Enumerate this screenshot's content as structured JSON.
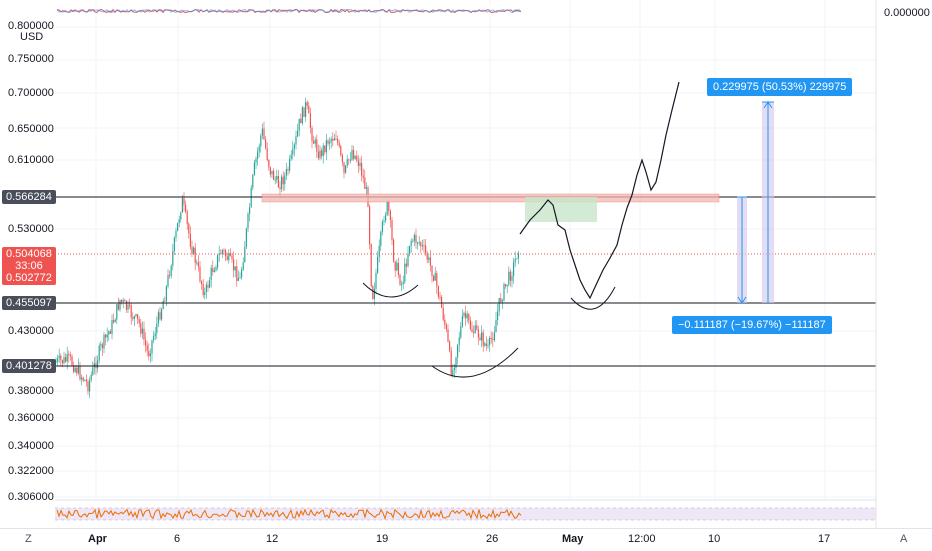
{
  "y_axis": {
    "currency": "USD",
    "labels": [
      "0.800000",
      "0.750000",
      "0.700000",
      "0.650000",
      "0.610000",
      "0.530000",
      "0.430000",
      "0.380000",
      "0.360000",
      "0.340000",
      "0.322000",
      "0.306000"
    ],
    "right_top_value": "0.000000"
  },
  "price_tags": {
    "resistance": "0.566284",
    "current_price": "0.504068",
    "countdown": "33:06",
    "open_price": "0.502772",
    "support_1": "0.455097",
    "support_2": "0.401278"
  },
  "x_axis": {
    "labels": [
      "Apr",
      "6",
      "12",
      "19",
      "26",
      "May",
      "12:00",
      "10",
      "17"
    ]
  },
  "measure": {
    "up_label": "0.229975 (50.53%) 229975",
    "down_label": "−0.111187 (−19.67%) −111187"
  },
  "buttons": {
    "timezone": "Z",
    "auto_scale": "A"
  },
  "colors": {
    "up": "#26a69a",
    "down": "#ef5350",
    "line": "#131722",
    "measure": "#2196f3",
    "zone_red": "#f5b7b1",
    "zone_green": "#c8e6c9"
  }
}
